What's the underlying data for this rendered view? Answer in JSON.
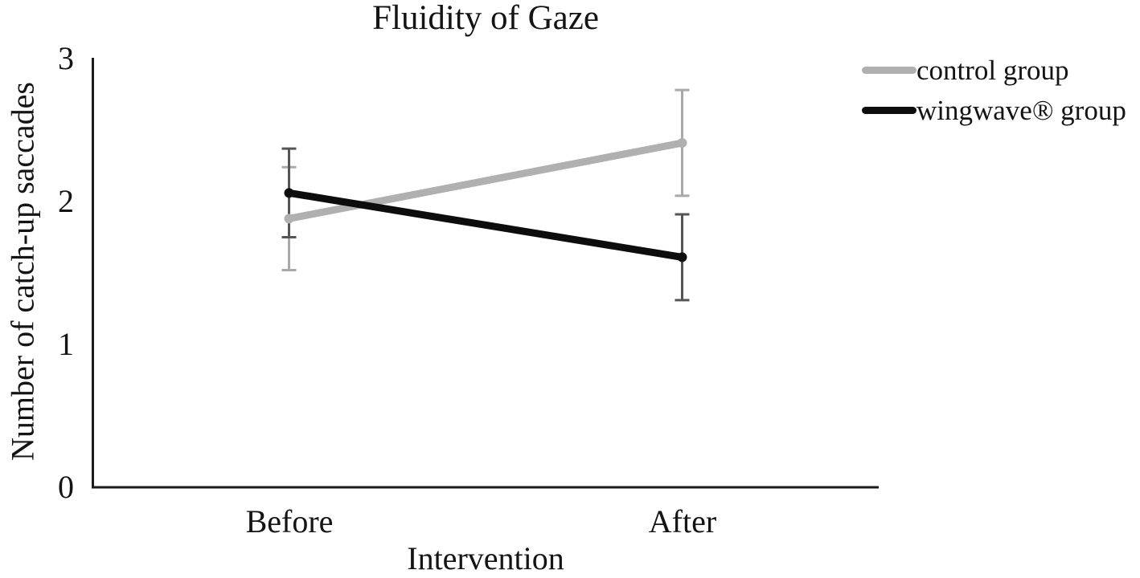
{
  "chart_data": {
    "type": "line",
    "title": "Fluidity of Gaze",
    "xlabel": "Intervention",
    "ylabel": "Number of catch-up saccades",
    "categories": [
      "Before",
      "After"
    ],
    "yticks": [
      0,
      1,
      2,
      3
    ],
    "ylim": [
      0,
      3
    ],
    "grid": false,
    "legend_position": "top-right",
    "axis_color": "#1a1a1a",
    "series": [
      {
        "name": "control group",
        "color": "#b0b0b0",
        "error_color": "#a9a9a9",
        "values": [
          1.88,
          2.41
        ],
        "error": [
          0.36,
          0.37
        ]
      },
      {
        "name": "wingwave® group",
        "color": "#0d0d0d",
        "error_color": "#555555",
        "values": [
          2.06,
          1.61
        ],
        "error": [
          0.31,
          0.3
        ]
      }
    ]
  }
}
